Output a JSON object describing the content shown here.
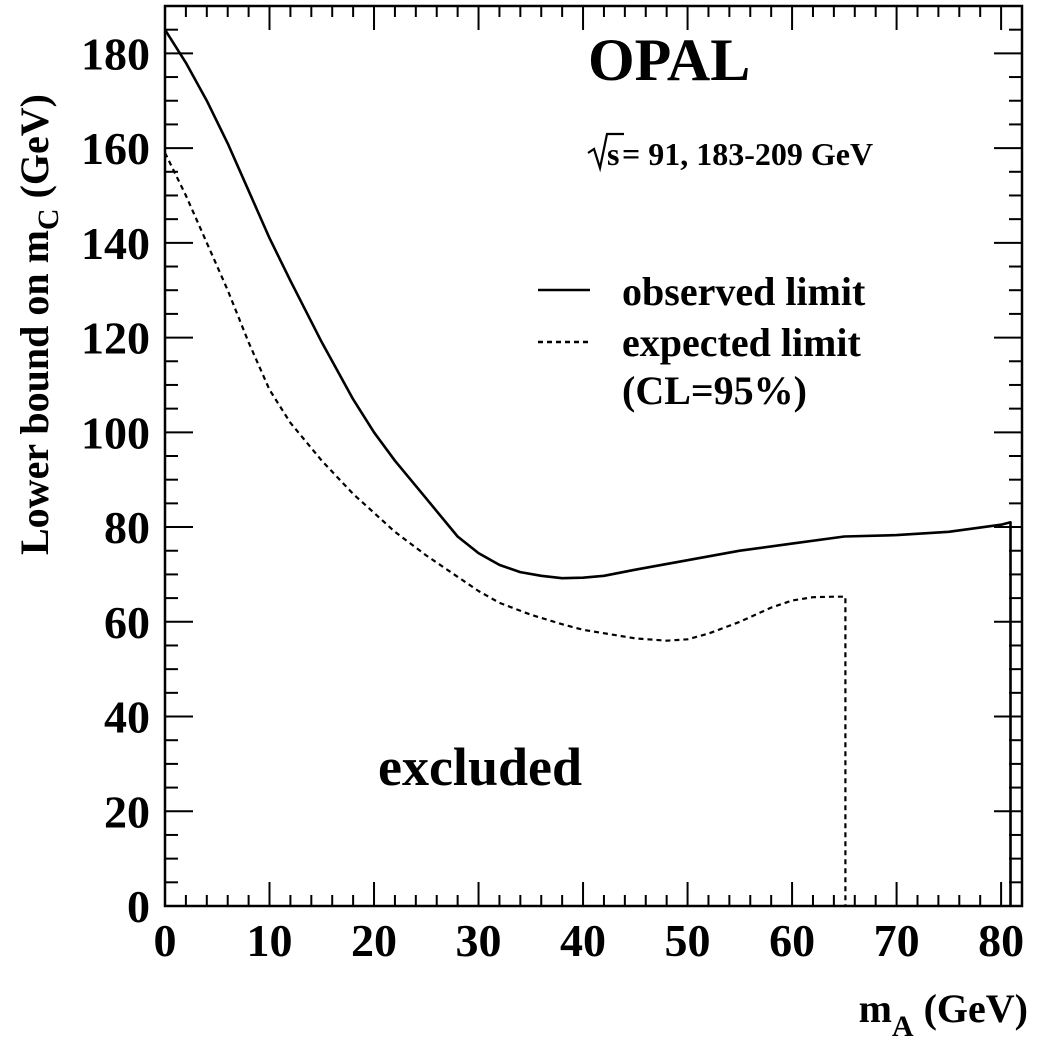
{
  "chart_data": {
    "type": "line",
    "title": "",
    "xlabel": "m_A (GeV)",
    "xlabel_parts": {
      "base": "m",
      "sub": "A",
      "suffix": " (GeV)"
    },
    "ylabel": "Lower bound on m_C (GeV)",
    "ylabel_parts": {
      "prefix": "Lower bound on ",
      "base": "m",
      "sub": "C",
      "suffix": " (GeV)"
    },
    "xlim": [
      0,
      82
    ],
    "ylim": [
      0,
      190
    ],
    "xticks": [
      0,
      10,
      20,
      30,
      40,
      50,
      60,
      70,
      80
    ],
    "yticks": [
      0,
      20,
      40,
      60,
      80,
      100,
      120,
      140,
      160,
      180
    ],
    "grid": false,
    "legend": {
      "placement": "top-right",
      "entries": [
        "observed limit",
        "expected limit"
      ],
      "note": "(CL=95%)"
    },
    "annotations": {
      "experiment": "OPAL",
      "energy_prefix": "s",
      "energy_text": " = 91, 183-209 GeV",
      "region": "excluded"
    },
    "series": [
      {
        "name": "observed limit",
        "style": "solid",
        "x": [
          0,
          2,
          4,
          6,
          8,
          10,
          12,
          15,
          18,
          20,
          22,
          25,
          28,
          30,
          32,
          34,
          36,
          38,
          40,
          42,
          45,
          50,
          55,
          60,
          65,
          70,
          75,
          80,
          80.9,
          80.9
        ],
        "y": [
          185,
          178,
          170,
          161,
          151,
          141,
          132,
          119,
          107,
          100,
          94,
          86,
          78,
          74.5,
          72,
          70.5,
          69.7,
          69.2,
          69.3,
          69.7,
          71,
          73,
          75,
          76.5,
          78,
          78.3,
          79,
          80.5,
          81,
          0
        ]
      },
      {
        "name": "expected limit",
        "style": "dashed",
        "x": [
          0,
          2,
          4,
          6,
          8,
          10,
          12,
          15,
          18,
          20,
          22,
          25,
          28,
          30,
          32,
          35,
          38,
          40,
          45,
          48,
          50,
          52,
          55,
          58,
          60,
          62,
          64,
          65,
          65.1,
          65.1
        ],
        "y": [
          159,
          150,
          140,
          130,
          119,
          109,
          102,
          94,
          87,
          83,
          79,
          74,
          69.5,
          66.5,
          64,
          61.5,
          59.5,
          58.3,
          56.5,
          56,
          56.3,
          57.5,
          60,
          63,
          64.5,
          65.2,
          65.3,
          65.3,
          65.3,
          0
        ]
      }
    ]
  }
}
